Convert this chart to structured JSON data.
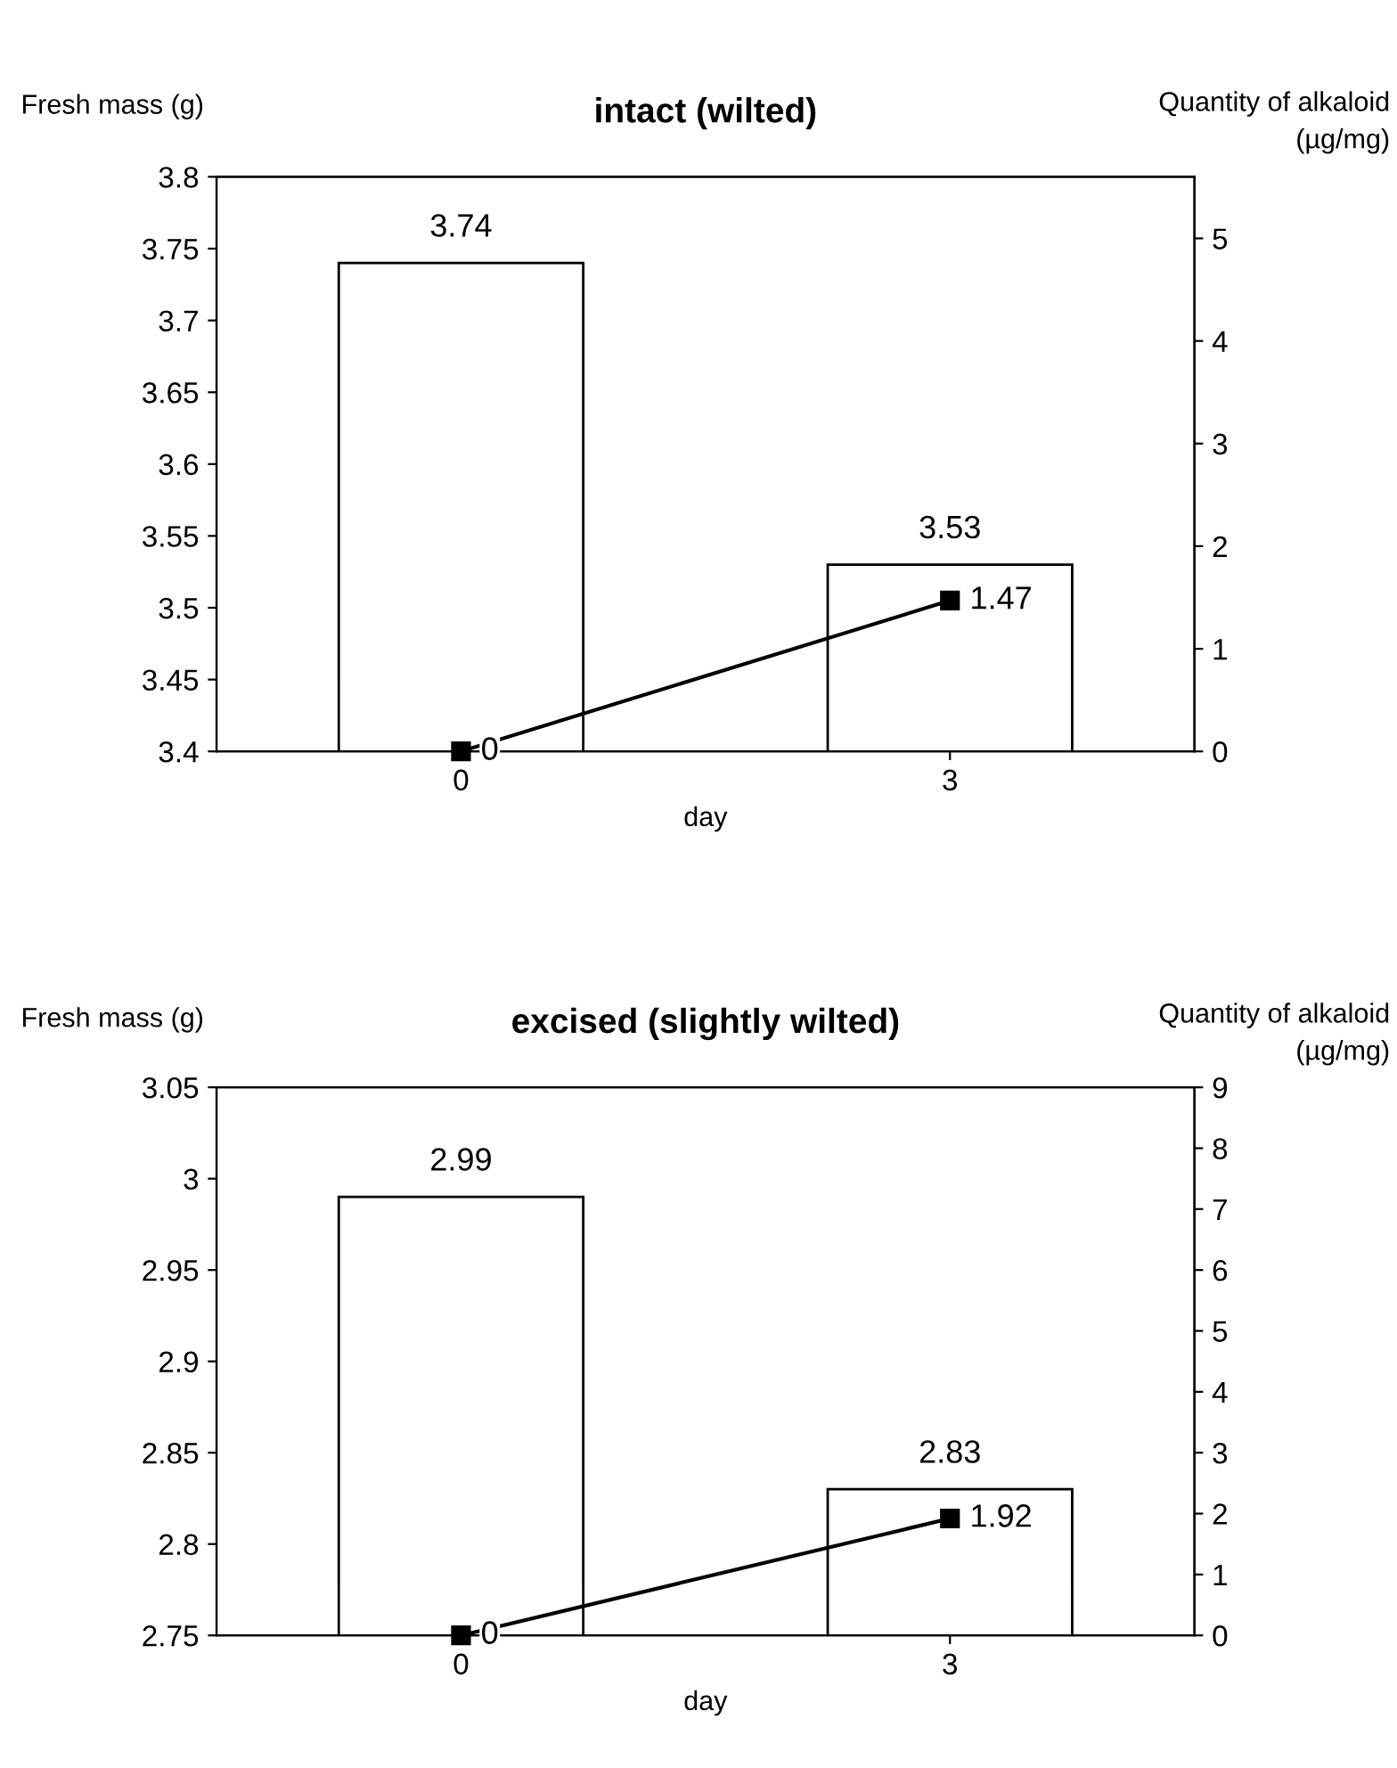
{
  "chart_data": [
    {
      "type": "bar",
      "title": "intact (wilted)",
      "xlabel": "day",
      "ylabel": "Fresh mass (g)",
      "y2label": "Quantity of alkaloid\n(µg/mg)",
      "categories": [
        "0",
        "3"
      ],
      "series": [
        {
          "color": "#ffffff",
          "values": [
            3.74,
            3.53
          ]
        },
        {
          "type": "line",
          "axis": "y2",
          "color": "#000000",
          "values": [
            0,
            1.47
          ],
          "marker": "square"
        }
      ],
      "ylim": [
        3.4,
        3.8
      ],
      "yticks": [
        3.4,
        3.45,
        3.5,
        3.55,
        3.6,
        3.65,
        3.7,
        3.75,
        3.8
      ],
      "y2lim": [
        0,
        5.6
      ],
      "y2ticks": [
        0,
        1,
        2,
        3,
        4,
        5
      ],
      "data_labels": true,
      "grid": false,
      "legend": false
    },
    {
      "type": "bar",
      "title": "excised (slightly wilted)",
      "xlabel": "day",
      "ylabel": "Fresh mass (g)",
      "y2label": "Quantity of alkaloid\n(µg/mg)",
      "categories": [
        "0",
        "3"
      ],
      "series": [
        {
          "color": "#ffffff",
          "values": [
            2.99,
            2.83
          ]
        },
        {
          "type": "line",
          "axis": "y2",
          "color": "#000000",
          "values": [
            0,
            1.92
          ],
          "marker": "square"
        }
      ],
      "ylim": [
        2.75,
        3.05
      ],
      "yticks": [
        2.75,
        2.8,
        2.85,
        2.9,
        2.95,
        3,
        3.05
      ],
      "y2lim": [
        0,
        9
      ],
      "y2ticks": [
        0,
        1,
        2,
        3,
        4,
        5,
        6,
        7,
        8,
        9
      ],
      "data_labels": true,
      "grid": false,
      "legend": false
    }
  ]
}
